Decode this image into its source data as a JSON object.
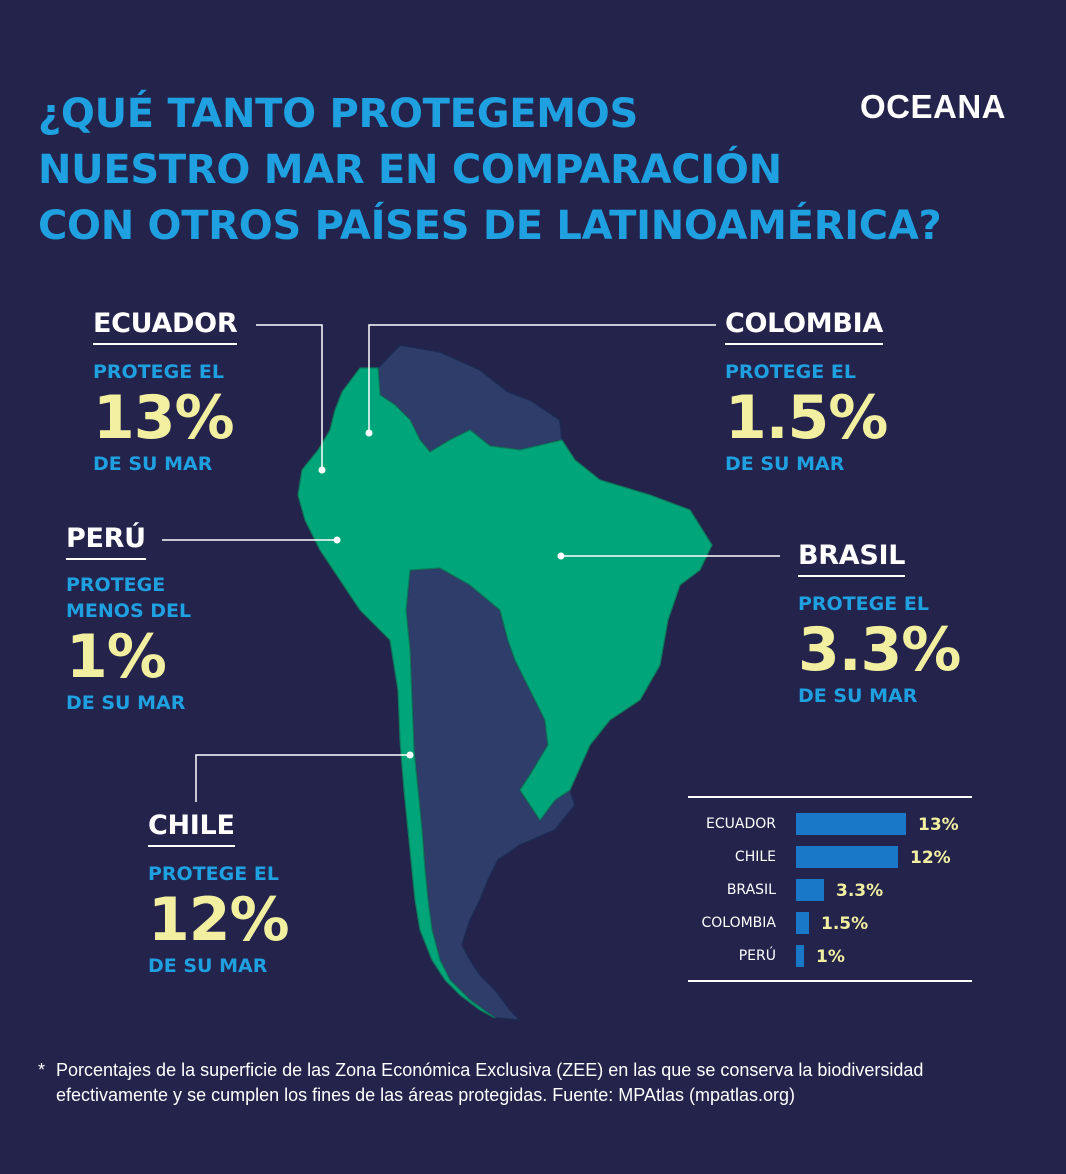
{
  "title_lines": [
    "¿QUÉ TANTO PROTEGEMOS",
    "NUESTRO MAR EN COMPARACIÓN",
    "CON OTROS PAÍSES DE LATINOAMÉRICA?"
  ],
  "logo": "OCEANA",
  "colors": {
    "background": "#23234c",
    "title": "#1fa0e0",
    "highlight": "#f2efa0",
    "land_focus": "#00a57a",
    "land_other": "#2e3d6a",
    "bar": "#1a78c9"
  },
  "callouts": {
    "ecuador": {
      "country": "ECUADOR",
      "line1": "PROTEGE EL",
      "value": "13%",
      "line3": "DE SU MAR"
    },
    "colombia": {
      "country": "COLOMBIA",
      "line1": "PROTEGE EL",
      "value": "1.5%",
      "line3": "DE SU MAR"
    },
    "peru": {
      "country": "PERÚ",
      "line1": "PROTEGE",
      "line2": "MENOS DEL",
      "value": "1%",
      "line3": "DE SU MAR"
    },
    "brasil": {
      "country": "BRASIL",
      "line1": "PROTEGE EL",
      "value": "3.3%",
      "line3": "DE SU MAR"
    },
    "chile": {
      "country": "CHILE",
      "line1": "PROTEGE EL",
      "value": "12%",
      "line3": "DE SU MAR"
    }
  },
  "chart_data": {
    "type": "bar",
    "orientation": "horizontal",
    "categories": [
      "ECUADOR",
      "CHILE",
      "BRASIL",
      "COLOMBIA",
      "PERÚ"
    ],
    "values": [
      13,
      12,
      3.3,
      1.5,
      1
    ],
    "value_labels": [
      "13%",
      "12%",
      "3.3%",
      "1.5%",
      "1%"
    ],
    "grid": false
  },
  "footnote": {
    "mark": "*",
    "text": "Porcentajes de la superficie de las Zona Económica Exclusiva (ZEE) en las que se conserva la biodiversidad efectivamente y se cumplen los fines de las áreas protegidas. Fuente: MPAtlas (mpatlas.org)"
  }
}
